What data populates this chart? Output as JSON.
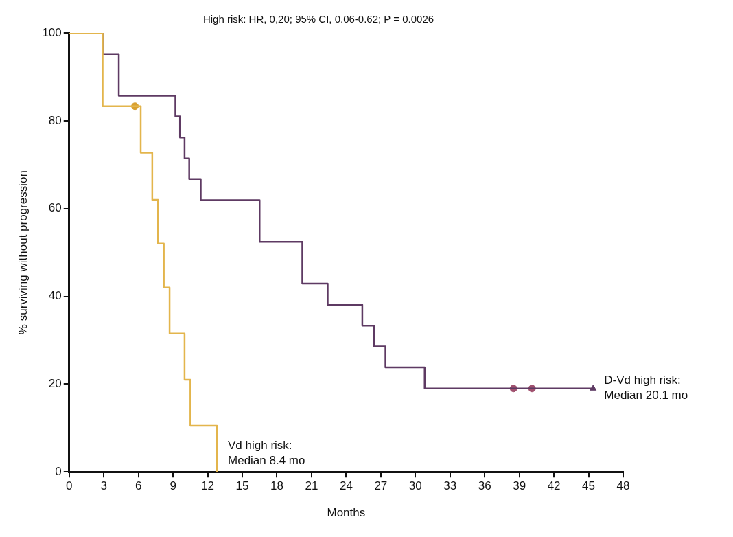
{
  "chart_data": {
    "type": "step",
    "title": "High risk: HR, 0,20; 95% CI, 0.06-0.62; P = 0.0026",
    "xlabel": "Months",
    "ylabel": "% surviving without progression",
    "series": [
      {
        "color": "#e3b54c",
        "marker": "none",
        "x": [
          0,
          2.9,
          6.2,
          7.2,
          7.7,
          8.2,
          8.7,
          10.0,
          10.5,
          12.8
        ],
        "values": [
          100,
          83.3,
          72.7,
          62,
          52,
          42,
          31.5,
          21,
          10.5,
          0
        ]
      },
      {
        "color": "#5e3a63",
        "marker": "none",
        "x": [
          0,
          2.9,
          4.3,
          9.2,
          9.6,
          10.0,
          10.4,
          11.4,
          16.5,
          20.2,
          22.4,
          25.4,
          26.4,
          27.4,
          30.8,
          45.4
        ],
        "values": [
          100,
          95.2,
          85.7,
          81,
          76.2,
          71.4,
          66.7,
          61.9,
          52.4,
          42.9,
          38.1,
          33.3,
          28.6,
          23.8,
          19,
          19
        ]
      },
      {
        "type": "scatter",
        "color": "#a0506e",
        "marker": "circle",
        "x": [
          38.5,
          40.1
        ],
        "values": [
          19,
          19
        ]
      },
      {
        "type": "scatter",
        "color": "#5e3a63",
        "marker": "triangle",
        "x": [
          45.4
        ],
        "values": [
          19
        ]
      },
      {
        "type": "scatter",
        "color": "#d9a030",
        "marker": "circle",
        "x": [
          5.7
        ],
        "values": [
          83.3
        ]
      }
    ],
    "xlim": [
      0,
      48
    ],
    "xticks": [
      0,
      3,
      6,
      9,
      12,
      15,
      18,
      21,
      24,
      27,
      30,
      33,
      36,
      39,
      42,
      45,
      48
    ],
    "ylim": [
      0,
      100
    ],
    "yticks": [
      0,
      20,
      40,
      60,
      80,
      100
    ],
    "grid": false,
    "legend": false,
    "annotations": [
      "Vd high risk:\nMedian 8.4 mo",
      "D-Vd high risk:\nMedian 20.1 mo"
    ]
  }
}
